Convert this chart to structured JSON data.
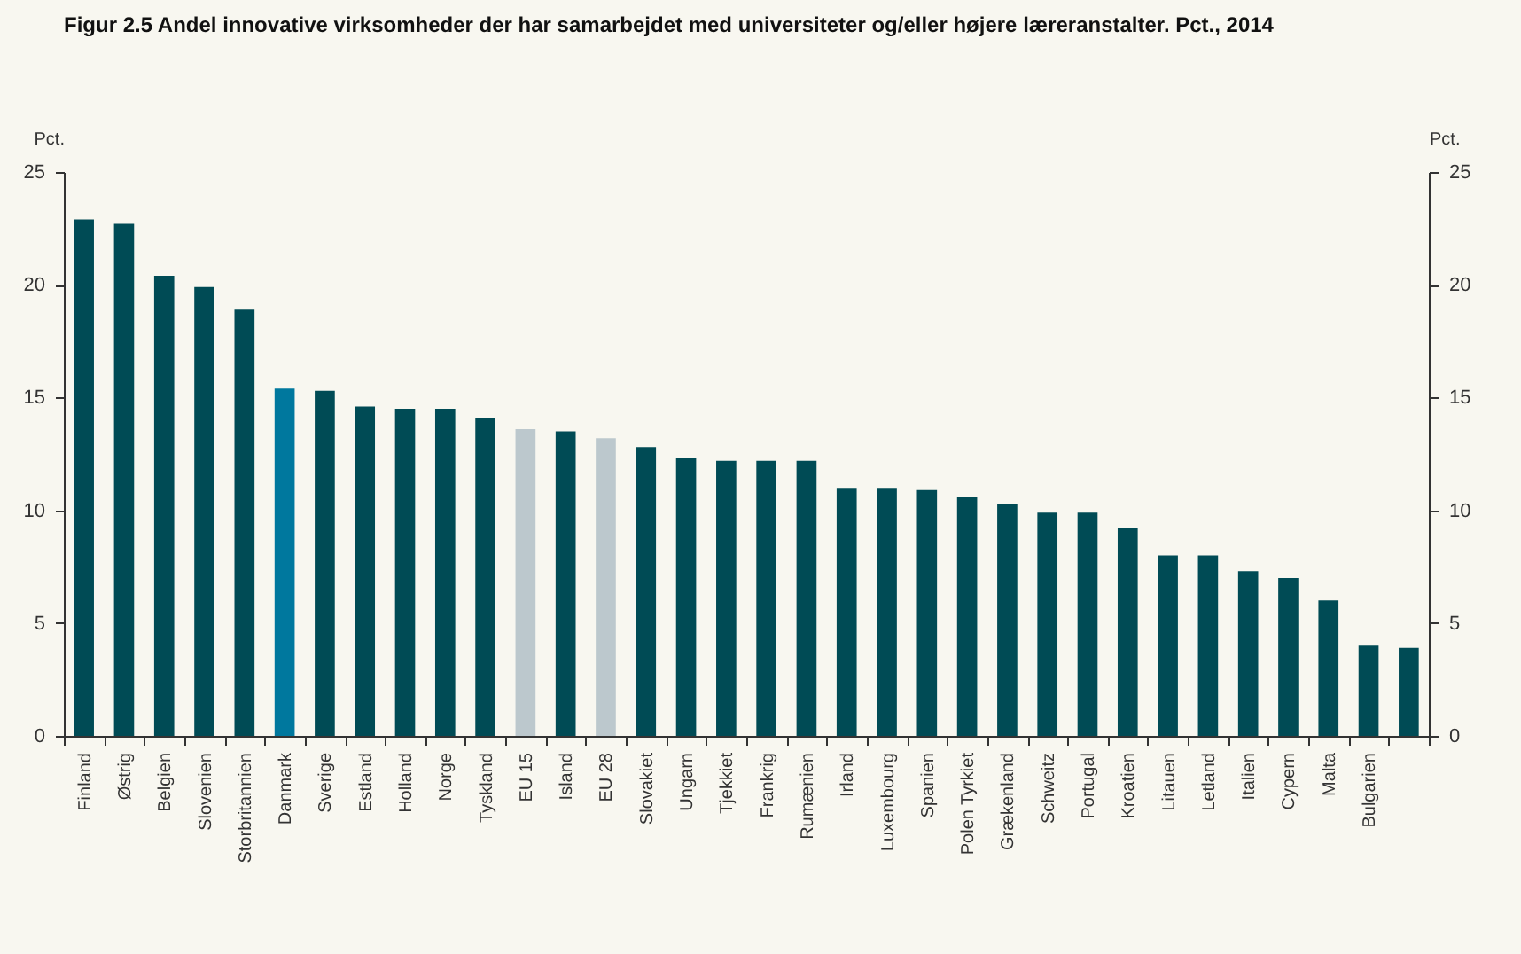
{
  "chart_data": {
    "type": "bar",
    "title": "Figur 2.5 Andel innovative virksomheder der har samarbejdet med universiteter og/eller højere læreranstalter. Pct., 2014",
    "ylabel": "Pct.",
    "y2label": "Pct.",
    "categories": [
      "Finland",
      "Østrig",
      "Belgien",
      "Slovenien",
      "Storbritannien",
      "Danmark",
      "Sverige",
      "Estland",
      "Holland",
      "Norge",
      "Tyskland",
      "EU 15",
      "Island",
      "EU 28",
      "Slovakiet",
      "Ungarn",
      "Tjekkiet",
      "Frankrig",
      "Rumænien",
      "Irland",
      "Luxembourg",
      "Spanien",
      "Polen Tyrkiet",
      "Grækenland",
      "Schweitz",
      "Portugal",
      "Kroatien",
      "Litauen",
      "Letland",
      "Italien",
      "Cypern",
      "Malta",
      "Bulgarien",
      null
    ],
    "values": [
      22.9,
      22.7,
      20.4,
      19.9,
      18.9,
      15.4,
      15.3,
      14.6,
      14.5,
      14.5,
      14.1,
      13.6,
      13.5,
      13.2,
      12.8,
      12.3,
      12.2,
      12.2,
      12.2,
      11.0,
      11.0,
      10.9,
      10.6,
      10.3,
      9.9,
      9.9,
      9.2,
      8.0,
      8.0,
      7.3,
      7.0,
      6.0,
      4.0,
      3.9
    ],
    "colors": [
      "#004b55",
      "#004b55",
      "#004b55",
      "#004b55",
      "#004b55",
      "#00789e",
      "#004b55",
      "#004b55",
      "#004b55",
      "#004b55",
      "#004b55",
      "#bcc8cd",
      "#004b55",
      "#bcc8cd",
      "#004b55",
      "#004b55",
      "#004b55",
      "#004b55",
      "#004b55",
      "#004b55",
      "#004b55",
      "#004b55",
      "#004b55",
      "#004b55",
      "#004b55",
      "#004b55",
      "#004b55",
      "#004b55",
      "#004b55",
      "#004b55",
      "#004b55",
      "#004b55",
      "#004b55",
      "#004b55"
    ],
    "ylim": [
      0,
      25
    ],
    "yticks": [
      0,
      5,
      10,
      15,
      20,
      25
    ],
    "y2lim": [
      0,
      25
    ],
    "y2ticks": [
      0,
      5,
      10,
      15,
      20,
      25
    ],
    "grid": false
  }
}
